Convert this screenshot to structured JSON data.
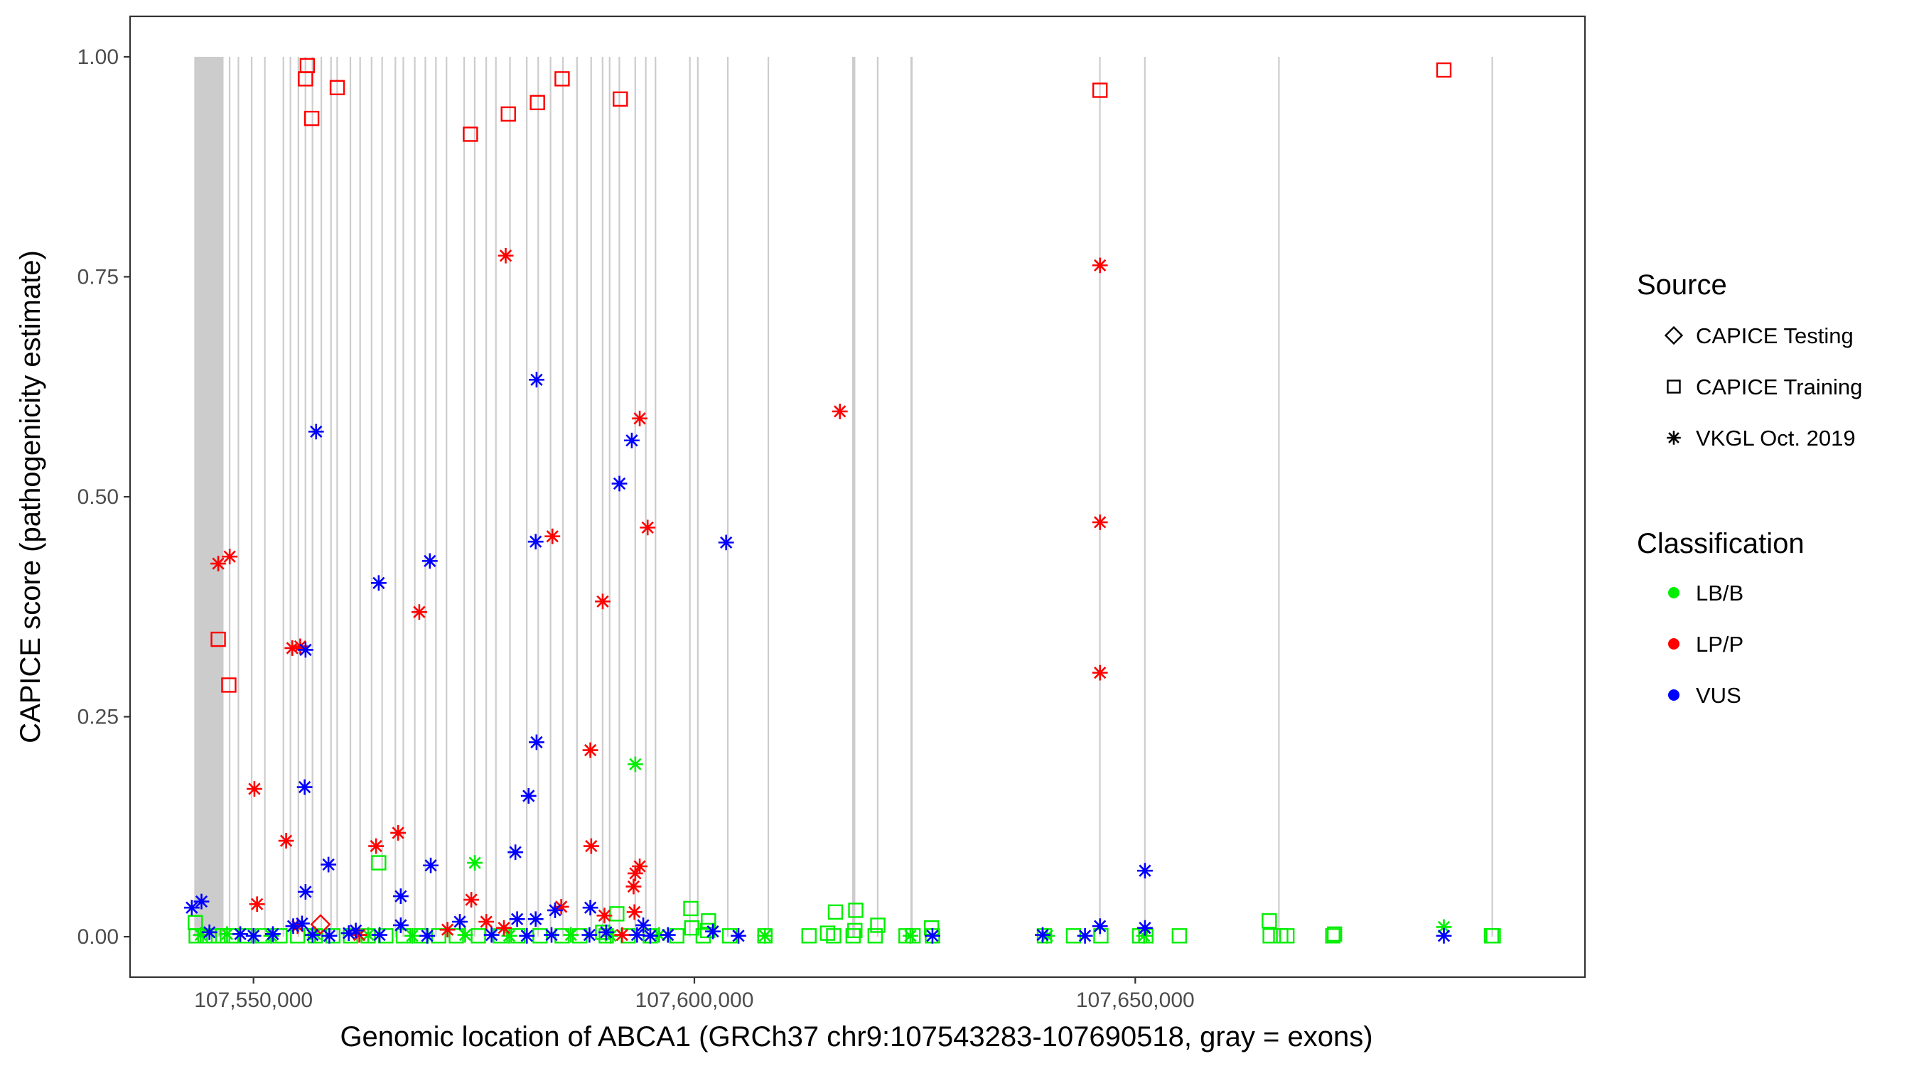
{
  "chart_data": {
    "type": "scatter",
    "xlabel": "Genomic location of ABCA1 (GRCh37 chr9:107543283-107690518, gray = exons)",
    "ylabel": "CAPICE score (pathogenicity estimate)",
    "xlim": [
      107536000,
      107701000
    ],
    "ylim": [
      -0.046,
      1.046
    ],
    "x_ticks": [
      107550000,
      107600000,
      107650000
    ],
    "x_tick_labels": [
      "107,550,000",
      "107,600,000",
      "107,650,000"
    ],
    "y_ticks": [
      0,
      0.25,
      0.5,
      0.75,
      1.0
    ],
    "y_tick_labels": [
      "0.00",
      "0.25",
      "0.50",
      "0.75",
      "1.00"
    ],
    "grid": false,
    "exons": [
      [
        107543283,
        107546600
      ],
      [
        107547200,
        107547350
      ],
      [
        107548200,
        107548350
      ],
      [
        107549700,
        107549850
      ],
      [
        107551200,
        107551320
      ],
      [
        107553300,
        107553420
      ],
      [
        107554100,
        107554220
      ],
      [
        107555000,
        107555120
      ],
      [
        107555800,
        107555920
      ],
      [
        107556600,
        107556720
      ],
      [
        107557600,
        107557720
      ],
      [
        107558700,
        107558820
      ],
      [
        107559400,
        107559520
      ],
      [
        107560900,
        107561020
      ],
      [
        107562000,
        107562120
      ],
      [
        107563300,
        107563420
      ],
      [
        107564500,
        107564620
      ],
      [
        107566000,
        107566120
      ],
      [
        107566900,
        107567020
      ],
      [
        107568200,
        107568320
      ],
      [
        107569400,
        107569520
      ],
      [
        107570600,
        107570720
      ],
      [
        107571800,
        107571920
      ],
      [
        107573800,
        107573920
      ],
      [
        107575000,
        107575120
      ],
      [
        107576300,
        107576420
      ],
      [
        107577400,
        107577520
      ],
      [
        107579000,
        107579120
      ],
      [
        107580900,
        107581020
      ],
      [
        107582200,
        107582320
      ],
      [
        107583600,
        107583720
      ],
      [
        107585000,
        107585120
      ],
      [
        107586600,
        107586720
      ],
      [
        107588200,
        107588320
      ],
      [
        107589500,
        107589620
      ],
      [
        107590300,
        107590420
      ],
      [
        107591400,
        107591520
      ],
      [
        107593200,
        107593320
      ],
      [
        107594400,
        107594520
      ],
      [
        107595500,
        107595620
      ],
      [
        107599400,
        107599520
      ],
      [
        107600300,
        107600420
      ],
      [
        107603700,
        107603820
      ],
      [
        107608300,
        107608420
      ],
      [
        107617900,
        107618250
      ],
      [
        107620700,
        107620820
      ],
      [
        107624500,
        107624750
      ],
      [
        107645900,
        107646020
      ],
      [
        107651000,
        107651120
      ],
      [
        107666200,
        107666320
      ],
      [
        107690400,
        107690518
      ]
    ],
    "legend": {
      "source_title": "Source",
      "source_items": [
        {
          "label": "CAPICE Testing",
          "shape": "diamond"
        },
        {
          "label": "CAPICE Training",
          "shape": "square"
        },
        {
          "label": "VKGL Oct. 2019",
          "shape": "asterisk"
        }
      ],
      "class_title": "Classification",
      "class_items": [
        {
          "label": "LB/B",
          "color": "#00ee00"
        },
        {
          "label": "LP/P",
          "color": "#ff0000"
        },
        {
          "label": "VUS",
          "color": "#0000ff"
        }
      ]
    },
    "series": [
      {
        "name": "LP/P - CAPICE Training",
        "source": "CAPICE Training",
        "classification": "LP/P",
        "color": "#ff0000",
        "shape": "square",
        "points": [
          [
            107556100,
            0.99
          ],
          [
            107555900,
            0.975
          ],
          [
            107559500,
            0.965
          ],
          [
            107556600,
            0.93
          ],
          [
            107578900,
            0.935
          ],
          [
            107574600,
            0.912
          ],
          [
            107582200,
            0.948
          ],
          [
            107585000,
            0.975
          ],
          [
            107591600,
            0.952
          ],
          [
            107646000,
            0.962
          ],
          [
            107685000,
            0.985
          ],
          [
            107546000,
            0.338
          ],
          [
            107547200,
            0.286
          ]
        ]
      },
      {
        "name": "LP/P - VKGL Oct. 2019",
        "source": "VKGL Oct. 2019",
        "classification": "LP/P",
        "color": "#ff0000",
        "shape": "asterisk",
        "points": [
          [
            107578600,
            0.774
          ],
          [
            107646000,
            0.763
          ],
          [
            107616500,
            0.597
          ],
          [
            107593800,
            0.589
          ],
          [
            107594700,
            0.465
          ],
          [
            107583900,
            0.455
          ],
          [
            107646000,
            0.471
          ],
          [
            107546000,
            0.424
          ],
          [
            107547300,
            0.432
          ],
          [
            107589600,
            0.381
          ],
          [
            107568800,
            0.369
          ],
          [
            107554400,
            0.328
          ],
          [
            107555300,
            0.33
          ],
          [
            107646000,
            0.3
          ],
          [
            107588200,
            0.212
          ],
          [
            107550100,
            0.168
          ],
          [
            107566400,
            0.118
          ],
          [
            107553700,
            0.109
          ],
          [
            107563900,
            0.103
          ],
          [
            107588300,
            0.103
          ],
          [
            107593800,
            0.08
          ],
          [
            107593300,
            0.072
          ],
          [
            107593100,
            0.057
          ],
          [
            107550400,
            0.037
          ],
          [
            107574700,
            0.042
          ],
          [
            107593200,
            0.028
          ],
          [
            107584900,
            0.034
          ],
          [
            107576400,
            0.017
          ],
          [
            107589800,
            0.024
          ],
          [
            107572000,
            0.008
          ],
          [
            107555000,
            0.012
          ],
          [
            107562000,
            0.002
          ],
          [
            107578400,
            0.01
          ],
          [
            107591800,
            0.002
          ]
        ]
      },
      {
        "name": "LP/P - CAPICE Testing",
        "source": "CAPICE Testing",
        "classification": "LP/P",
        "color": "#ff0000",
        "shape": "diamond",
        "points": [
          [
            107557600,
            0.014
          ]
        ]
      },
      {
        "name": "VUS - VKGL Oct. 2019",
        "source": "VKGL Oct. 2019",
        "classification": "VUS",
        "color": "#0000ff",
        "shape": "asterisk",
        "points": [
          [
            107582100,
            0.633
          ],
          [
            107557100,
            0.574
          ],
          [
            107592900,
            0.564
          ],
          [
            107591500,
            0.515
          ],
          [
            107582000,
            0.449
          ],
          [
            107603600,
            0.448
          ],
          [
            107570000,
            0.427
          ],
          [
            107564200,
            0.402
          ],
          [
            107555900,
            0.326
          ],
          [
            107582100,
            0.221
          ],
          [
            107555800,
            0.17
          ],
          [
            107581200,
            0.16
          ],
          [
            107558500,
            0.082
          ],
          [
            107570100,
            0.081
          ],
          [
            107579700,
            0.096
          ],
          [
            107651100,
            0.075
          ],
          [
            107555900,
            0.051
          ],
          [
            107566700,
            0.046
          ],
          [
            107544100,
            0.04
          ],
          [
            107543000,
            0.033
          ],
          [
            107584200,
            0.03
          ],
          [
            107588200,
            0.033
          ],
          [
            107573400,
            0.017
          ],
          [
            107566700,
            0.013
          ],
          [
            107555500,
            0.015
          ],
          [
            107554500,
            0.012
          ],
          [
            107579900,
            0.02
          ],
          [
            107582000,
            0.02
          ],
          [
            107594200,
            0.013
          ],
          [
            107646000,
            0.012
          ],
          [
            107651100,
            0.01
          ],
          [
            107602100,
            0.006
          ],
          [
            107545000,
            0.005
          ],
          [
            107548500,
            0.003
          ],
          [
            107550000,
            0.001
          ],
          [
            107552200,
            0.003
          ],
          [
            107556700,
            0.002
          ],
          [
            107558600,
            0.001
          ],
          [
            107560800,
            0.004
          ],
          [
            107561600,
            0.007
          ],
          [
            107564300,
            0.002
          ],
          [
            107569700,
            0.001
          ],
          [
            107577000,
            0.002
          ],
          [
            107581000,
            0.001
          ],
          [
            107583800,
            0.002
          ],
          [
            107588100,
            0.002
          ],
          [
            107590000,
            0.005
          ],
          [
            107593500,
            0.002
          ],
          [
            107595000,
            0.001
          ],
          [
            107597000,
            0.002
          ],
          [
            107605000,
            0.001
          ],
          [
            107627000,
            0.001
          ],
          [
            107639500,
            0.002
          ],
          [
            107644300,
            0.001
          ],
          [
            107685000,
            0.001
          ]
        ]
      },
      {
        "name": "LB/B - VKGL Oct. 2019",
        "source": "VKGL Oct. 2019",
        "classification": "LB/B",
        "color": "#00ee00",
        "shape": "asterisk",
        "points": [
          [
            107593300,
            0.196
          ],
          [
            107575100,
            0.084
          ],
          [
            107685000,
            0.011
          ],
          [
            107544000,
            0.002
          ],
          [
            107547000,
            0.003
          ],
          [
            107552000,
            0.001
          ],
          [
            107557000,
            0.003
          ],
          [
            107563000,
            0.002
          ],
          [
            107568000,
            0.001
          ],
          [
            107574000,
            0.002
          ],
          [
            107579000,
            0.001
          ],
          [
            107586000,
            0.002
          ],
          [
            107590500,
            0.001
          ],
          [
            107596000,
            0.002
          ],
          [
            107608000,
            0.001
          ],
          [
            107624500,
            0.001
          ],
          [
            107640000,
            0.001
          ],
          [
            107651000,
            0.001
          ]
        ]
      },
      {
        "name": "LB/B - CAPICE Training",
        "source": "CAPICE Training",
        "classification": "LB/B",
        "color": "#00ee00",
        "shape": "square",
        "points": [
          [
            107564200,
            0.084
          ],
          [
            107599600,
            0.032
          ],
          [
            107616000,
            0.028
          ],
          [
            107618300,
            0.03
          ],
          [
            107591200,
            0.026
          ],
          [
            107601600,
            0.018
          ],
          [
            107665200,
            0.018
          ],
          [
            107620800,
            0.013
          ],
          [
            107626900,
            0.01
          ],
          [
            107543400,
            0.016
          ],
          [
            107599700,
            0.01
          ],
          [
            107618200,
            0.007
          ],
          [
            107601500,
            0.007
          ],
          [
            107615100,
            0.004
          ],
          [
            107589600,
            0.005
          ],
          [
            107543500,
            0.001
          ],
          [
            107544500,
            0.001
          ],
          [
            107545500,
            0.001
          ],
          [
            107546500,
            0.001
          ],
          [
            107547500,
            0.001
          ],
          [
            107549000,
            0.001
          ],
          [
            107551000,
            0.001
          ],
          [
            107553000,
            0.001
          ],
          [
            107555000,
            0.001
          ],
          [
            107557000,
            0.001
          ],
          [
            107559000,
            0.001
          ],
          [
            107561000,
            0.001
          ],
          [
            107563000,
            0.001
          ],
          [
            107565000,
            0.001
          ],
          [
            107567000,
            0.001
          ],
          [
            107569000,
            0.001
          ],
          [
            107571000,
            0.001
          ],
          [
            107573000,
            0.001
          ],
          [
            107575500,
            0.001
          ],
          [
            107578000,
            0.001
          ],
          [
            107580000,
            0.001
          ],
          [
            107582500,
            0.001
          ],
          [
            107585000,
            0.001
          ],
          [
            107587000,
            0.001
          ],
          [
            107590000,
            0.001
          ],
          [
            107592500,
            0.001
          ],
          [
            107595000,
            0.001
          ],
          [
            107598000,
            0.001
          ],
          [
            107601000,
            0.001
          ],
          [
            107604000,
            0.001
          ],
          [
            107608000,
            0.001
          ],
          [
            107613000,
            0.001
          ],
          [
            107615800,
            0.001
          ],
          [
            107618000,
            0.001
          ],
          [
            107620500,
            0.001
          ],
          [
            107624000,
            0.001
          ],
          [
            107624800,
            0.001
          ],
          [
            107627000,
            0.001
          ],
          [
            107639700,
            0.001
          ],
          [
            107643000,
            0.001
          ],
          [
            107646100,
            0.001
          ],
          [
            107650500,
            0.001
          ],
          [
            107651200,
            0.001
          ],
          [
            107655000,
            0.001
          ],
          [
            107665300,
            0.001
          ],
          [
            107666500,
            0.001
          ],
          [
            107667200,
            0.001
          ],
          [
            107672400,
            0.001
          ],
          [
            107672600,
            0.003
          ],
          [
            107690400,
            0.001
          ],
          [
            107690600,
            0.001
          ]
        ]
      }
    ]
  }
}
